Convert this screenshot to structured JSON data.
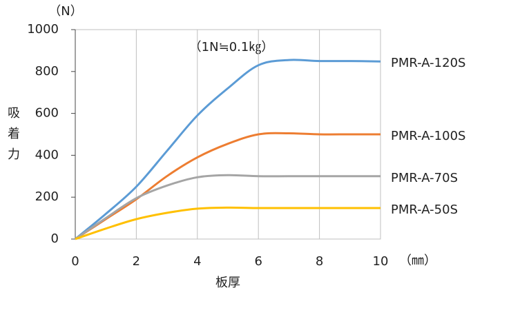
{
  "chart_data": {
    "type": "line",
    "y_unit": "（N）",
    "x_unit": "（㎜）",
    "x_label": "板厚",
    "y_label": "吸着力",
    "annotation": "（1N≒0.1㎏）",
    "x": [
      0,
      1,
      2,
      3,
      4,
      5,
      6,
      7,
      8,
      9,
      10
    ],
    "series": [
      {
        "name": "PMR-A-120S",
        "color": "#5b9bd5",
        "values": [
          0,
          120,
          250,
          420,
          590,
          720,
          830,
          855,
          850,
          850,
          848
        ]
      },
      {
        "name": "PMR-A-100S",
        "color": "#ed7d31",
        "values": [
          0,
          95,
          190,
          300,
          390,
          455,
          500,
          505,
          500,
          500,
          500
        ]
      },
      {
        "name": "PMR-A-70S",
        "color": "#a5a5a5",
        "values": [
          0,
          100,
          195,
          255,
          295,
          305,
          300,
          300,
          300,
          300,
          300
        ]
      },
      {
        "name": "PMR-A-50S",
        "color": "#ffc000",
        "values": [
          0,
          50,
          95,
          125,
          145,
          150,
          148,
          148,
          148,
          148,
          148
        ]
      }
    ],
    "xlim": [
      0,
      10
    ],
    "xticks": [
      0,
      2,
      4,
      6,
      8,
      10
    ],
    "ylim": [
      0,
      1000
    ],
    "yticks": [
      0,
      200,
      400,
      600,
      800,
      1000
    ],
    "grid": true
  }
}
